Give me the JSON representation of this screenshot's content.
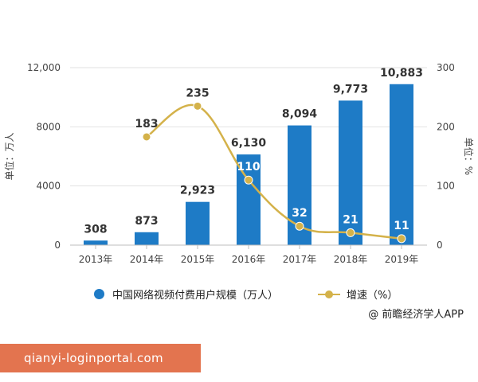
{
  "chart_data": {
    "type": "bar",
    "categories": [
      "2013年",
      "2014年",
      "2015年",
      "2016年",
      "2017年",
      "2018年",
      "2019年"
    ],
    "series": [
      {
        "name": "中国网络视频付费用户规模（万人）",
        "type": "bar",
        "axis": "left",
        "values": [
          308,
          873,
          2923,
          6130,
          8094,
          9773,
          10883
        ],
        "labels": [
          "308",
          "873",
          "2,923",
          "6,130",
          "8,094",
          "9,773",
          "10,883"
        ],
        "color": "#1e7bc6"
      },
      {
        "name": "增速（%）",
        "type": "line",
        "axis": "right",
        "values": [
          null,
          183,
          235,
          110,
          32,
          21,
          11
        ],
        "labels": [
          "",
          "183",
          "235",
          "110",
          "32",
          "21",
          "11"
        ],
        "color": "#d4b24a"
      }
    ],
    "ylabel_left": "单位：万人",
    "ylabel_right": "单位：%",
    "ylim_left": [
      0,
      12000
    ],
    "ylim_right": [
      0,
      300
    ],
    "yticks_left": [
      "0",
      "4000",
      "8000",
      "12,000"
    ],
    "yticks_right": [
      "0",
      "100",
      "200",
      "300"
    ],
    "legend_position": "bottom"
  },
  "legend": {
    "bar_label": "中国网络视频付费用户规模（万人）",
    "line_label": "增速（%）"
  },
  "source": "@ 前瞻经济学人APP",
  "watermark_url": "qianyi-loginportal.com"
}
